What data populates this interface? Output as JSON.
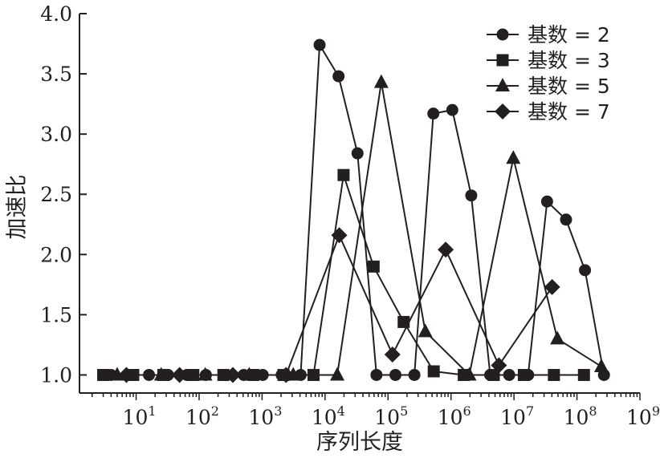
{
  "chart_data": {
    "type": "line",
    "xlabel": "序列长度",
    "ylabel": "加速比",
    "xscale": "log",
    "xlim": [
      1.26,
      1000000000
    ],
    "ylim": [
      0.85,
      4.0
    ],
    "grid": false,
    "legend_position": "top-right",
    "y_ticks": [
      "1.0",
      "1.5",
      "2.0",
      "2.5",
      "3.0",
      "3.5",
      "4.0"
    ],
    "x_ticks": [
      {
        "base": "10",
        "exp": "1"
      },
      {
        "base": "10",
        "exp": "2"
      },
      {
        "base": "10",
        "exp": "3"
      },
      {
        "base": "10",
        "exp": "4"
      },
      {
        "base": "10",
        "exp": "5"
      },
      {
        "base": "10",
        "exp": "6"
      },
      {
        "base": "10",
        "exp": "7"
      },
      {
        "base": "10",
        "exp": "8"
      },
      {
        "base": "10",
        "exp": "9"
      }
    ],
    "series": [
      {
        "name": "基数 = 2",
        "marker": "circle",
        "points": [
          [
            3,
            1.0
          ],
          [
            4,
            1.0
          ],
          [
            8,
            1.0
          ],
          [
            16,
            1.0
          ],
          [
            32,
            1.0
          ],
          [
            64,
            1.0
          ],
          [
            128,
            1.0
          ],
          [
            256,
            1.0
          ],
          [
            512,
            1.0
          ],
          [
            1024,
            1.0
          ],
          [
            2048,
            1.0
          ],
          [
            4096,
            1.0
          ],
          [
            8192,
            3.74
          ],
          [
            16384,
            3.48
          ],
          [
            32768,
            2.84
          ],
          [
            65536,
            1.0
          ],
          [
            131072,
            1.0
          ],
          [
            262144,
            1.0
          ],
          [
            524288,
            3.17
          ],
          [
            1048576,
            3.2
          ],
          [
            2097152,
            2.49
          ],
          [
            4194304,
            1.0
          ],
          [
            8388608,
            1.0
          ],
          [
            16777216,
            1.0
          ],
          [
            33554432,
            2.44
          ],
          [
            67108864,
            2.29
          ],
          [
            134217728,
            1.87
          ],
          [
            268435456,
            1.0
          ]
        ]
      },
      {
        "name": "基数 = 3",
        "marker": "square",
        "points": [
          [
            3,
            1.0
          ],
          [
            9,
            1.0
          ],
          [
            27,
            1.0
          ],
          [
            81,
            1.0
          ],
          [
            243,
            1.0
          ],
          [
            729,
            1.0
          ],
          [
            2187,
            1.0
          ],
          [
            6561,
            1.0
          ],
          [
            19683,
            2.66
          ],
          [
            59049,
            1.9
          ],
          [
            177147,
            1.44
          ],
          [
            531441,
            1.03
          ],
          [
            1594323,
            1.0
          ],
          [
            4782969,
            1.0
          ],
          [
            14348907,
            1.0
          ],
          [
            43046721,
            1.0
          ],
          [
            129140163,
            1.0
          ]
        ]
      },
      {
        "name": "基数 = 5",
        "marker": "triangle",
        "points": [
          [
            5,
            1.0
          ],
          [
            25,
            1.0
          ],
          [
            125,
            1.0
          ],
          [
            625,
            1.0
          ],
          [
            3125,
            1.0
          ],
          [
            15625,
            1.0
          ],
          [
            78125,
            3.43
          ],
          [
            390625,
            1.36
          ],
          [
            1953125,
            1.0
          ],
          [
            9765625,
            2.8
          ],
          [
            48828125,
            1.3
          ],
          [
            244140625,
            1.07
          ]
        ]
      },
      {
        "name": "基数 = 7",
        "marker": "diamond",
        "points": [
          [
            7,
            1.0
          ],
          [
            49,
            1.0
          ],
          [
            343,
            1.0
          ],
          [
            2401,
            1.0
          ],
          [
            16807,
            2.16
          ],
          [
            117649,
            1.17
          ],
          [
            823543,
            2.04
          ],
          [
            5764801,
            1.08
          ],
          [
            40353607,
            1.73
          ]
        ]
      }
    ]
  }
}
